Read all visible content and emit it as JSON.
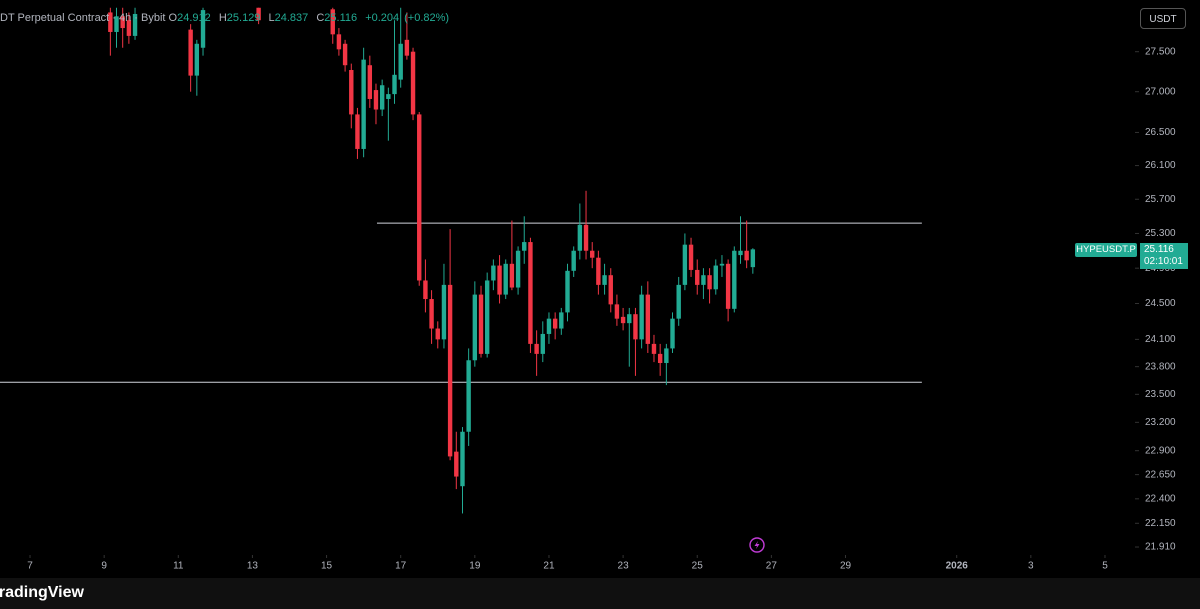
{
  "chart_data": {
    "type": "candlestick",
    "header": "DT Perpetual Contract · 4h · Bybit",
    "ohlc_labels": [
      "O",
      "H",
      "L",
      "C"
    ],
    "change": "+0.204",
    "change_percent": "(+0.82%)",
    "currency": "USDT",
    "symbol": "HYPEUSDT.P",
    "countdown": "02:10:01",
    "footer": "TradingView",
    "up_color": "#22ab94",
    "down_color": "#f23645",
    "log_scale": true,
    "grid": false,
    "xlim": [
      6.19,
      36.81
    ],
    "ylim": [
      21.83,
      28.16
    ],
    "xticks": [
      7,
      9,
      11,
      13,
      15,
      17,
      19,
      21,
      23,
      25,
      27,
      29,
      {
        "value": 32,
        "label": "2026"
      },
      {
        "value": 34,
        "label": "3"
      },
      {
        "value": 36,
        "label": "5"
      }
    ],
    "yticks": [
      {
        "value": 27.5,
        "label": "27.500"
      },
      {
        "value": 27.0,
        "label": "27.000"
      },
      {
        "value": 26.5,
        "label": "26.500"
      },
      {
        "value": 26.1,
        "label": "26.100"
      },
      {
        "value": 25.7,
        "label": "25.700"
      },
      {
        "value": 25.3,
        "label": "25.300"
      },
      {
        "value": 24.9,
        "label": "24.900"
      },
      {
        "value": 24.5,
        "label": "24.500"
      },
      {
        "value": 24.1,
        "label": "24.100"
      },
      {
        "value": 23.8,
        "label": "23.800"
      },
      {
        "value": 23.5,
        "label": "23.500"
      },
      {
        "value": 23.2,
        "label": "23.200"
      },
      {
        "value": 22.9,
        "label": "22.900"
      },
      {
        "value": 22.65,
        "label": "22.650"
      },
      {
        "value": 22.4,
        "label": "22.400"
      },
      {
        "value": 22.15,
        "label": "22.150"
      },
      {
        "value": 21.91,
        "label": "21.910"
      }
    ],
    "hline_color": "#d1d4dc",
    "hlines": [
      {
        "value": 25.42,
        "x": [
          16.36,
          31.06
        ]
      },
      {
        "value": 23.63,
        "x": [
          6.19,
          31.06
        ]
      }
    ],
    "x": [
      9.167,
      9.333,
      9.5,
      9.667,
      9.833,
      11.333,
      11.5,
      11.667,
      13.167,
      15.167,
      15.333,
      15.5,
      15.667,
      15.833,
      16,
      16.167,
      16.333,
      16.5,
      16.667,
      16.833,
      17,
      17.167,
      17.333,
      17.5,
      17.667,
      17.833,
      18,
      18.167,
      18.333,
      18.5,
      18.667,
      18.833,
      19,
      19.167,
      19.333,
      19.5,
      19.667,
      19.833,
      20,
      20.167,
      20.333,
      20.5,
      20.667,
      20.833,
      21,
      21.167,
      21.333,
      21.5,
      21.667,
      21.833,
      22,
      22.167,
      22.333,
      22.5,
      22.667,
      22.833,
      23,
      23.167,
      23.333,
      23.5,
      23.667,
      23.833,
      24,
      24.167,
      24.333,
      24.5,
      24.667,
      24.833,
      25,
      25.167,
      25.333,
      25.5,
      25.667,
      25.833,
      26,
      26.167,
      26.333,
      26.5
    ],
    "open": [
      28.0,
      27.75,
      27.95,
      27.9,
      27.7,
      27.78,
      27.2,
      27.55,
      28.06,
      28.04,
      27.72,
      27.6,
      27.27,
      26.72,
      26.3,
      27.33,
      27.02,
      26.78,
      26.91,
      26.97,
      27.15,
      27.65,
      27.5,
      26.72,
      24.76,
      24.55,
      24.22,
      24.1,
      24.71,
      22.89,
      22.53,
      23.1,
      23.87,
      24.6,
      23.94,
      24.76,
      24.93,
      24.6,
      24.95,
      24.68,
      25.1,
      25.2,
      24.05,
      23.94,
      24.16,
      24.33,
      24.22,
      24.4,
      24.87,
      25.1,
      25.4,
      25.1,
      25.02,
      24.71,
      24.82,
      24.49,
      24.35,
      24.28,
      24.38,
      24.1,
      24.6,
      24.05,
      23.94,
      23.84,
      24.0,
      24.33,
      24.71,
      25.17,
      24.88,
      24.71,
      24.82,
      24.66,
      24.93,
      24.95,
      24.44,
      25.05,
      25.1,
      24.912
    ],
    "high": [
      28.06,
      28.06,
      28.06,
      28.0,
      28.06,
      27.85,
      27.65,
      28.06,
      28.06,
      28.06,
      27.8,
      27.65,
      27.35,
      26.8,
      27.55,
      27.45,
      27.1,
      27.15,
      27.05,
      27.9,
      28.06,
      28.0,
      27.55,
      26.75,
      25.0,
      24.65,
      24.3,
      24.95,
      25.35,
      23.1,
      23.15,
      24.0,
      24.75,
      24.7,
      24.85,
      25.0,
      25.05,
      25.0,
      25.45,
      25.15,
      25.5,
      25.25,
      24.2,
      24.3,
      24.4,
      24.4,
      24.45,
      24.95,
      25.15,
      25.65,
      25.8,
      25.2,
      25.1,
      24.95,
      24.9,
      24.6,
      24.45,
      24.45,
      24.45,
      24.7,
      24.75,
      24.15,
      24.05,
      24.05,
      24.4,
      24.8,
      25.3,
      25.25,
      25.0,
      24.9,
      24.9,
      25.0,
      25.05,
      25.0,
      25.15,
      25.5,
      25.45,
      25.129
    ],
    "low": [
      27.45,
      27.55,
      27.55,
      27.6,
      27.65,
      27.0,
      26.95,
      27.45,
      27.85,
      27.6,
      27.45,
      27.25,
      26.55,
      26.18,
      26.2,
      26.8,
      26.6,
      26.7,
      26.4,
      26.85,
      27.05,
      27.4,
      26.65,
      24.7,
      24.4,
      24.05,
      24.0,
      24.0,
      22.8,
      22.5,
      22.25,
      22.95,
      23.8,
      23.9,
      23.9,
      24.65,
      24.5,
      24.55,
      24.65,
      24.6,
      24.95,
      23.95,
      23.7,
      23.85,
      24.05,
      24.1,
      24.15,
      24.3,
      24.8,
      25.0,
      25.0,
      24.9,
      24.6,
      24.6,
      24.4,
      24.25,
      24.2,
      23.8,
      23.7,
      24.0,
      23.95,
      23.85,
      23.7,
      23.6,
      23.95,
      24.25,
      24.65,
      24.8,
      24.6,
      24.55,
      24.5,
      24.6,
      24.8,
      24.3,
      24.4,
      24.95,
      24.9,
      24.837
    ],
    "close": [
      27.75,
      27.95,
      27.8,
      27.7,
      27.98,
      27.2,
      27.6,
      28.03,
      27.9,
      27.72,
      27.53,
      27.33,
      26.72,
      26.3,
      27.4,
      26.91,
      26.78,
      27.08,
      26.97,
      27.21,
      27.6,
      27.45,
      26.72,
      24.76,
      24.55,
      24.22,
      24.1,
      24.71,
      22.84,
      22.63,
      23.1,
      23.87,
      24.6,
      23.94,
      24.76,
      24.93,
      24.6,
      24.95,
      24.68,
      25.1,
      25.2,
      24.05,
      23.94,
      24.16,
      24.33,
      24.22,
      24.4,
      24.87,
      25.1,
      25.4,
      25.1,
      25.02,
      24.71,
      24.82,
      24.49,
      24.33,
      24.28,
      24.38,
      24.1,
      24.6,
      24.05,
      23.94,
      23.84,
      24.0,
      24.33,
      24.71,
      25.17,
      24.88,
      24.71,
      24.82,
      24.66,
      24.93,
      24.95,
      24.44,
      25.1,
      25.1,
      24.99,
      25.116
    ]
  }
}
